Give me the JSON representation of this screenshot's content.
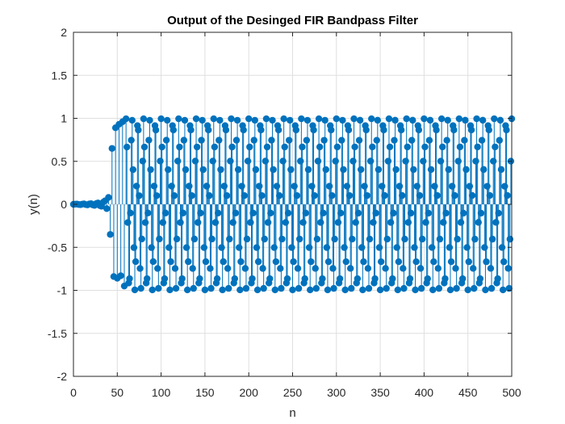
{
  "chart_data": {
    "type": "stem",
    "title": "Output of the Desinged FIR Bandpass Filter",
    "xlabel": "n",
    "ylabel": "y(n)",
    "xlim": [
      0,
      500
    ],
    "ylim": [
      -2,
      2
    ],
    "grid": true,
    "legend": "none",
    "colors": {
      "series": "#0072BD",
      "axis": "#262626",
      "grid": "#DFDFDF"
    },
    "x_ticks": [
      0,
      50,
      100,
      150,
      200,
      250,
      300,
      350,
      400,
      450,
      500
    ],
    "x_tick_labels": [
      "0",
      "50",
      "100",
      "150",
      "200",
      "250",
      "300",
      "350",
      "400",
      "450",
      "500"
    ],
    "y_ticks": [
      -2,
      -1.5,
      -1,
      -0.5,
      0,
      0.5,
      1,
      1.5,
      2
    ],
    "y_tick_labels": [
      "-2",
      "-1.5",
      "-1",
      "-0.5",
      "0",
      "0.5",
      "1",
      "1.5",
      "2"
    ],
    "series": [
      {
        "sample_start": 0,
        "sample_end": 500,
        "transient": {
          "x": [
            0,
            2,
            4,
            6,
            8,
            10,
            12,
            14,
            16,
            18,
            20,
            22,
            24,
            26,
            28,
            30,
            32,
            34,
            36,
            38,
            40,
            42,
            44,
            46,
            48,
            50,
            52,
            54,
            56,
            58
          ],
          "y": [
            0,
            0.002,
            0.003,
            -0.002,
            -0.004,
            0.002,
            0.005,
            -0.003,
            -0.006,
            0.004,
            0.008,
            -0.006,
            -0.012,
            0.009,
            0.016,
            -0.014,
            -0.022,
            0.025,
            0.04,
            -0.05,
            0.08,
            -0.35,
            0.65,
            -0.84,
            0.89,
            -0.86,
            0.93,
            -0.83,
            0.96,
            -0.95
          ]
        },
        "steady_state": {
          "description_values": "sinusoid, amplitude 1, period 20/3 samples",
          "amplitude": 1.0,
          "period_samples": 6.6667,
          "start_n": 60
        }
      }
    ]
  }
}
